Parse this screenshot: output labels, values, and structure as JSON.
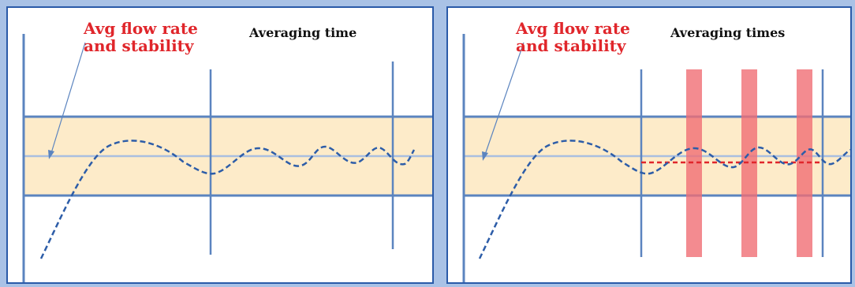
{
  "colors": {
    "band_fill": "#fdebc9",
    "axis_blue": "#5b84bf",
    "center_line": "#a9bfe0",
    "curve": "#2d5da8",
    "accent_red": "#e0262b",
    "window_red": "#f06e74",
    "panel_border": "#2a5aa8",
    "background": "#a9c2e6"
  },
  "left_panel": {
    "label_line1": "Avg flow rate",
    "label_line2": "and stability",
    "heading": "Averaging time"
  },
  "right_panel": {
    "label_line1": "Avg flow rate",
    "label_line2": "and stability",
    "heading": "Averaging times"
  }
}
